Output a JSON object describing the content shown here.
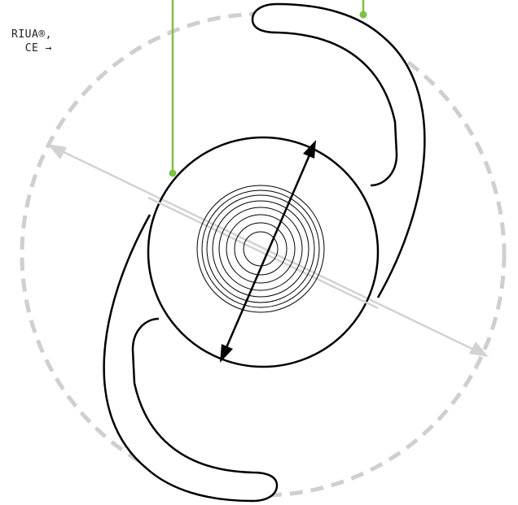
{
  "caption": {
    "line1": "RIUA®,",
    "line2": "CE →"
  },
  "colors": {
    "outline": "#000000",
    "accent_leader": "#7dc242",
    "boundary_dashed": "#cfcfcf",
    "axis_arrow": "#d2d2d2",
    "background": "#ffffff"
  },
  "icons": {
    "optic": "concentric-rings",
    "diameter": "double-headed-arrow",
    "axis": "double-headed-arrow"
  }
}
